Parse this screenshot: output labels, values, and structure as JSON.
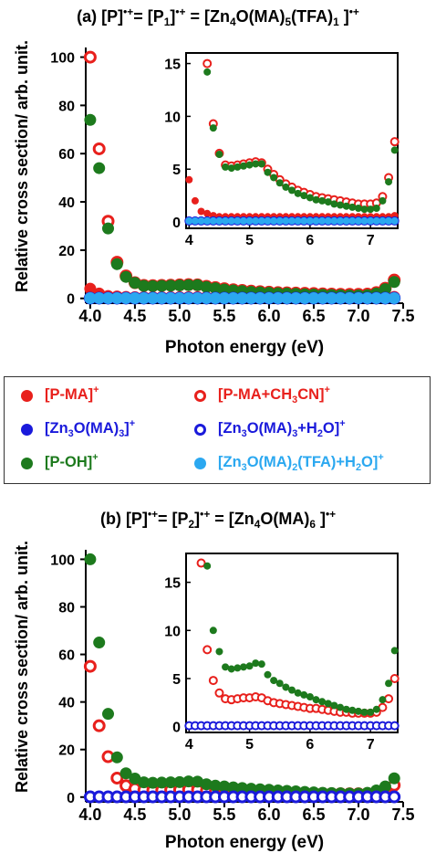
{
  "chart_data": [
    {
      "type": "scatter",
      "title": "(a) [P]•+ = [P1]•+ = [Zn4O(MA)5(TFA)1 ]•+",
      "xlabel": "Photon energy (eV)",
      "ylabel": "Relative cross section/ arb. unit.",
      "xlim": [
        3.95,
        7.5
      ],
      "ylim": [
        -2,
        104
      ],
      "xticks": [
        "4.0",
        "4.5",
        "5.0",
        "5.5",
        "6.0",
        "6.5",
        "7.0",
        "7.5"
      ],
      "yticks": [
        "0",
        "20",
        "40",
        "60",
        "80",
        "100"
      ],
      "series": [
        {
          "name": "[P-MA]+",
          "color": "#e8201c",
          "style": "filled",
          "x": [
            4.0,
            4.1,
            4.2,
            4.3,
            4.4,
            4.5,
            4.6,
            4.7,
            4.8,
            4.9,
            5.0,
            5.1,
            5.2,
            5.3,
            5.4,
            5.5,
            5.6,
            5.7,
            5.8,
            5.9,
            6.0,
            6.1,
            6.2,
            6.3,
            6.4,
            6.5,
            6.6,
            6.7,
            6.8,
            6.9,
            7.0,
            7.1,
            7.2,
            7.3,
            7.4
          ],
          "y": [
            4,
            2,
            1,
            0.8,
            0.6,
            0.5,
            0.5,
            0.5,
            0.5,
            0.5,
            0.5,
            0.5,
            0.5,
            0.5,
            0.5,
            0.5,
            0.5,
            0.5,
            0.5,
            0.5,
            0.5,
            0.5,
            0.5,
            0.5,
            0.5,
            0.5,
            0.5,
            0.5,
            0.5,
            0.5,
            0.5,
            0.5,
            0.5,
            0.5,
            0.6
          ]
        },
        {
          "name": "[P-MA+CH3CN]+",
          "color": "#e8201c",
          "style": "open",
          "x": [
            4.0,
            4.1,
            4.2,
            4.3,
            4.4,
            4.5,
            4.6,
            4.7,
            4.8,
            4.9,
            5.0,
            5.1,
            5.2,
            5.3,
            5.4,
            5.5,
            5.6,
            5.7,
            5.8,
            5.9,
            6.0,
            6.1,
            6.2,
            6.3,
            6.4,
            6.5,
            6.6,
            6.7,
            6.8,
            6.9,
            7.0,
            7.1,
            7.2,
            7.3,
            7.4
          ],
          "y": [
            100,
            62,
            32,
            15,
            9.3,
            6.5,
            5.4,
            5.3,
            5.4,
            5.5,
            5.6,
            5.7,
            5.6,
            5.0,
            4.5,
            4.0,
            3.6,
            3.3,
            3.0,
            2.8,
            2.6,
            2.4,
            2.3,
            2.2,
            2.1,
            2.0,
            1.9,
            1.8,
            1.7,
            1.7,
            1.7,
            1.8,
            2.4,
            4.2,
            7.6
          ]
        },
        {
          "name": "[P-OH]+",
          "color": "#1d7a1d",
          "style": "filled",
          "x": [
            4.0,
            4.1,
            4.2,
            4.3,
            4.4,
            4.5,
            4.6,
            4.7,
            4.8,
            4.9,
            5.0,
            5.1,
            5.2,
            5.3,
            5.4,
            5.5,
            5.6,
            5.7,
            5.8,
            5.9,
            6.0,
            6.1,
            6.2,
            6.3,
            6.4,
            6.5,
            6.6,
            6.7,
            6.8,
            6.9,
            7.0,
            7.1,
            7.2,
            7.3,
            7.4
          ],
          "y": [
            74,
            54,
            29,
            14.2,
            8.9,
            6.4,
            5.2,
            5.1,
            5.2,
            5.3,
            5.4,
            5.5,
            5.5,
            4.7,
            4.2,
            3.7,
            3.3,
            3.0,
            2.7,
            2.5,
            2.3,
            2.1,
            2.0,
            1.9,
            1.7,
            1.6,
            1.5,
            1.4,
            1.3,
            1.2,
            1.2,
            1.3,
            2.0,
            3.8,
            6.8
          ]
        },
        {
          "name": "[Zn3O(MA)3]+",
          "color": "#1a1adb",
          "style": "filled",
          "x": [
            4.0,
            4.1,
            4.2,
            4.3,
            4.4,
            4.5,
            4.6,
            4.7,
            4.8,
            4.9,
            5.0,
            5.1,
            5.2,
            5.3,
            5.4,
            5.5,
            5.6,
            5.7,
            5.8,
            5.9,
            6.0,
            6.1,
            6.2,
            6.3,
            6.4,
            6.5,
            6.6,
            6.7,
            6.8,
            6.9,
            7.0,
            7.1,
            7.2,
            7.3,
            7.4
          ],
          "y": [
            0.1,
            0.1,
            0.1,
            0.1,
            0.1,
            0.1,
            0.1,
            0.1,
            0.1,
            0.1,
            0.1,
            0.1,
            0.1,
            0.1,
            0.1,
            0.1,
            0.1,
            0.1,
            0.1,
            0.1,
            0.1,
            0.1,
            0.1,
            0.1,
            0.1,
            0.1,
            0.1,
            0.1,
            0.1,
            0.1,
            0.1,
            0.1,
            0.1,
            0.1,
            0.1
          ]
        },
        {
          "name": "[Zn3O(MA)3+H2O]+",
          "color": "#1a1adb",
          "style": "open",
          "x": [
            4.0,
            4.1,
            4.2,
            4.3,
            4.4,
            4.5,
            4.6,
            4.7,
            4.8,
            4.9,
            5.0,
            5.1,
            5.2,
            5.3,
            5.4,
            5.5,
            5.6,
            5.7,
            5.8,
            5.9,
            6.0,
            6.1,
            6.2,
            6.3,
            6.4,
            6.5,
            6.6,
            6.7,
            6.8,
            6.9,
            7.0,
            7.1,
            7.2,
            7.3,
            7.4
          ],
          "y": [
            0.1,
            0.1,
            0.1,
            0.1,
            0.1,
            0.1,
            0.1,
            0.1,
            0.1,
            0.1,
            0.1,
            0.1,
            0.1,
            0.1,
            0.1,
            0.1,
            0.1,
            0.1,
            0.1,
            0.1,
            0.1,
            0.1,
            0.1,
            0.1,
            0.1,
            0.1,
            0.1,
            0.1,
            0.1,
            0.1,
            0.1,
            0.1,
            0.1,
            0.1,
            0.1
          ]
        },
        {
          "name": "[Zn3O(MA)2(TFA)+H2O]+",
          "color": "#2ba8f0",
          "style": "filled",
          "x": [
            4.0,
            4.1,
            4.2,
            4.3,
            4.4,
            4.5,
            4.6,
            4.7,
            4.8,
            4.9,
            5.0,
            5.1,
            5.2,
            5.3,
            5.4,
            5.5,
            5.6,
            5.7,
            5.8,
            5.9,
            6.0,
            6.1,
            6.2,
            6.3,
            6.4,
            6.5,
            6.6,
            6.7,
            6.8,
            6.9,
            7.0,
            7.1,
            7.2,
            7.3,
            7.4
          ],
          "y": [
            0.1,
            0.1,
            0.1,
            0.1,
            0.1,
            0.1,
            0.1,
            0.1,
            0.1,
            0.1,
            0.1,
            0.1,
            0.1,
            0.1,
            0.1,
            0.1,
            0.1,
            0.1,
            0.1,
            0.1,
            0.1,
            0.1,
            0.1,
            0.1,
            0.1,
            0.1,
            0.1,
            0.1,
            0.1,
            0.1,
            0.1,
            0.1,
            0.1,
            0.1,
            0.1
          ]
        }
      ],
      "inset": {
        "xlim": [
          3.95,
          7.45
        ],
        "ylim": [
          -0.6,
          16
        ],
        "xticks": [
          "4",
          "5",
          "6",
          "7"
        ],
        "yticks": [
          "0",
          "5",
          "10",
          "15"
        ]
      }
    },
    {
      "type": "scatter",
      "title": "(b) [P]•+ = [P2]•+ = [Zn4O(MA)6 ]•+",
      "xlabel": "Photon energy (eV)",
      "ylabel": "Relative cross section/ arb. unit.",
      "xlim": [
        3.95,
        7.5
      ],
      "ylim": [
        -2,
        104
      ],
      "xticks": [
        "4.0",
        "4.5",
        "5.0",
        "5.5",
        "6.0",
        "6.5",
        "7.0",
        "7.5"
      ],
      "yticks": [
        "0",
        "20",
        "40",
        "60",
        "80",
        "100"
      ],
      "series": [
        {
          "name": "[P-MA+CH3CN]+",
          "color": "#e8201c",
          "style": "open",
          "x": [
            4.0,
            4.1,
            4.2,
            4.3,
            4.4,
            4.5,
            4.6,
            4.7,
            4.8,
            4.9,
            5.0,
            5.1,
            5.2,
            5.3,
            5.4,
            5.5,
            5.6,
            5.7,
            5.8,
            5.9,
            6.0,
            6.1,
            6.2,
            6.3,
            6.4,
            6.5,
            6.6,
            6.7,
            6.8,
            6.9,
            7.0,
            7.1,
            7.2,
            7.3,
            7.4
          ],
          "y": [
            55,
            30,
            17,
            8,
            4.8,
            3.5,
            2.9,
            2.8,
            2.9,
            3.0,
            3.0,
            3.1,
            3.0,
            2.7,
            2.5,
            2.4,
            2.3,
            2.2,
            2.1,
            2.0,
            1.9,
            1.9,
            1.8,
            1.7,
            1.6,
            1.5,
            1.5,
            1.4,
            1.4,
            1.4,
            1.4,
            1.5,
            2.0,
            2.9,
            5.0
          ]
        },
        {
          "name": "[P-OH]+",
          "color": "#1d7a1d",
          "style": "filled",
          "x": [
            4.0,
            4.1,
            4.2,
            4.3,
            4.4,
            4.5,
            4.6,
            4.7,
            4.8,
            4.9,
            5.0,
            5.1,
            5.2,
            5.3,
            5.4,
            5.5,
            5.6,
            5.7,
            5.8,
            5.9,
            6.0,
            6.1,
            6.2,
            6.3,
            6.4,
            6.5,
            6.6,
            6.7,
            6.8,
            6.9,
            7.0,
            7.1,
            7.2,
            7.3,
            7.4
          ],
          "y": [
            100,
            65,
            35,
            16.7,
            10,
            7.8,
            6.2,
            6.0,
            6.1,
            6.2,
            6.3,
            6.6,
            6.5,
            5.4,
            4.8,
            4.5,
            4.1,
            3.8,
            3.5,
            3.3,
            3.1,
            2.8,
            2.6,
            2.4,
            2.2,
            2.0,
            1.8,
            1.7,
            1.6,
            1.5,
            1.5,
            1.8,
            2.8,
            4.5,
            7.9
          ]
        },
        {
          "name": "[Zn3O(MA)3+H2O]+",
          "color": "#1a1adb",
          "style": "open",
          "x": [
            4.0,
            4.1,
            4.2,
            4.3,
            4.4,
            4.5,
            4.6,
            4.7,
            4.8,
            4.9,
            5.0,
            5.1,
            5.2,
            5.3,
            5.4,
            5.5,
            5.6,
            5.7,
            5.8,
            5.9,
            6.0,
            6.1,
            6.2,
            6.3,
            6.4,
            6.5,
            6.6,
            6.7,
            6.8,
            6.9,
            7.0,
            7.1,
            7.2,
            7.3,
            7.4
          ],
          "y": [
            0.1,
            0.1,
            0.1,
            0.1,
            0.1,
            0.1,
            0.1,
            0.1,
            0.1,
            0.1,
            0.1,
            0.1,
            0.1,
            0.1,
            0.1,
            0.1,
            0.1,
            0.1,
            0.1,
            0.1,
            0.1,
            0.1,
            0.1,
            0.1,
            0.1,
            0.1,
            0.1,
            0.1,
            0.1,
            0.1,
            0.1,
            0.1,
            0.1,
            0.1,
            0.1
          ]
        }
      ],
      "inset": {
        "xlim": [
          3.95,
          7.45
        ],
        "ylim": [
          -0.6,
          18
        ],
        "xticks": [
          "4",
          "5",
          "6",
          "7"
        ],
        "yticks": [
          "0",
          "5",
          "10",
          "15"
        ]
      }
    }
  ]
}
